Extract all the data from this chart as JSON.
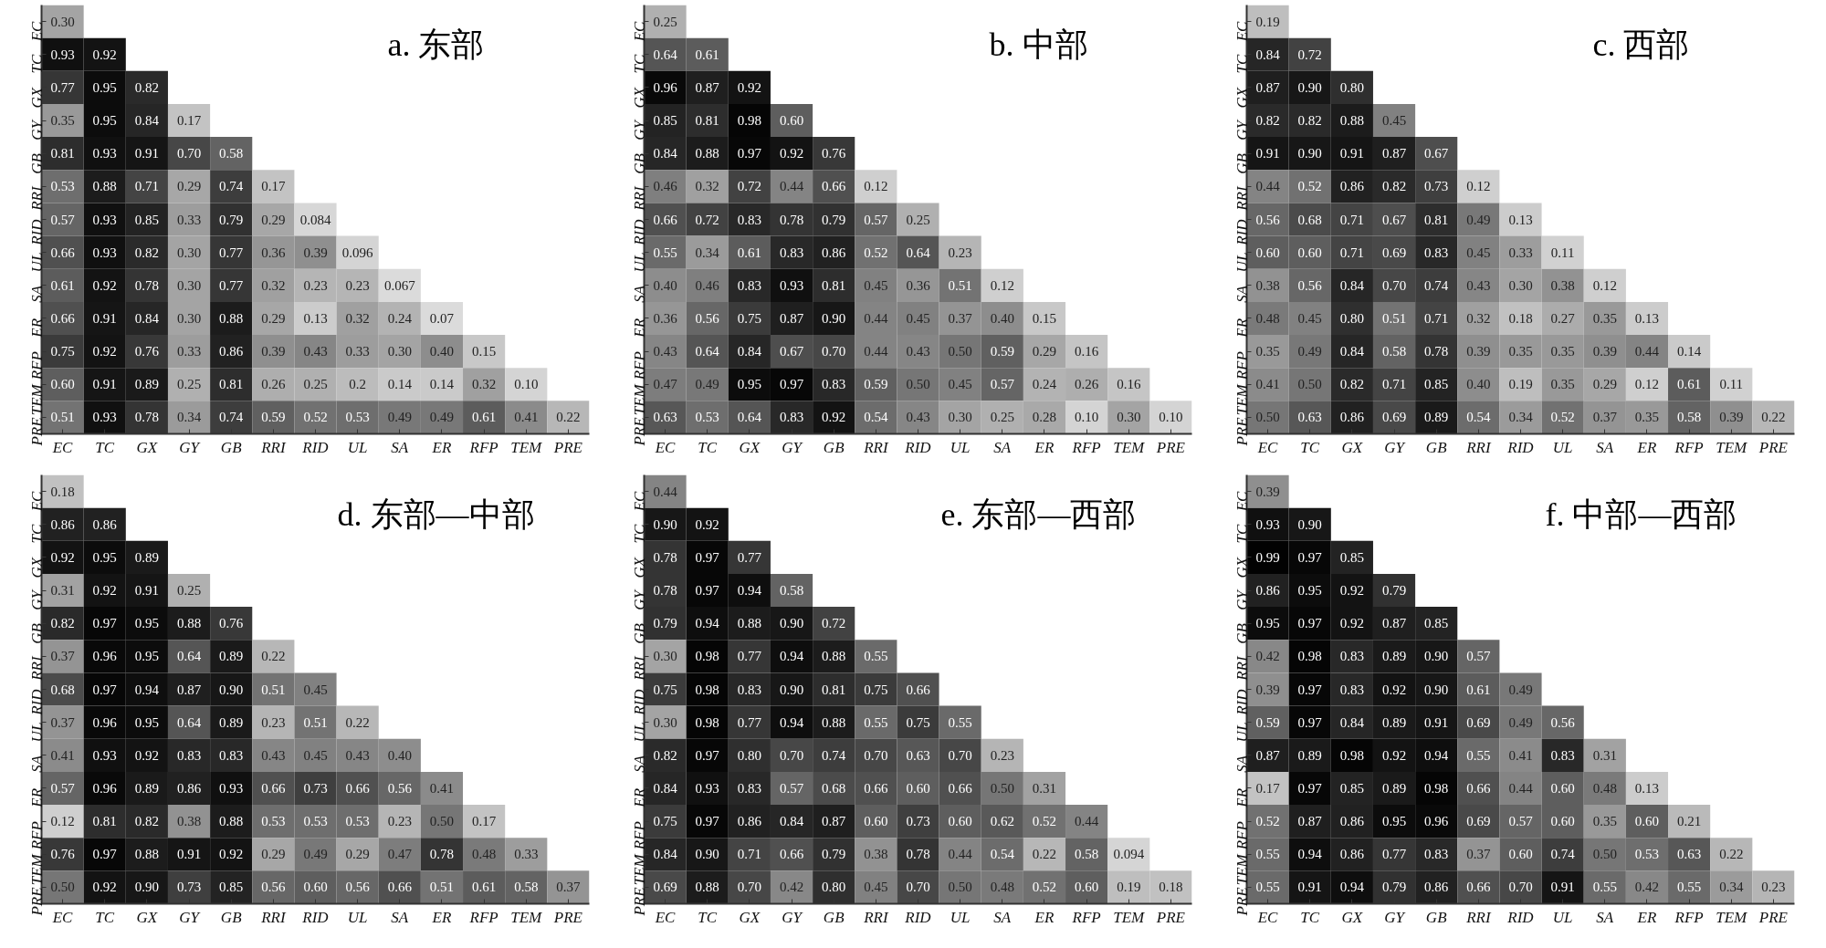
{
  "chart_data": [
    {
      "type": "heatmap",
      "title": "a. 东部",
      "categories": [
        "EC",
        "TC",
        "GX",
        "GY",
        "GB",
        "RRI",
        "RID",
        "UL",
        "SA",
        "ER",
        "RFP",
        "TEM",
        "PRE"
      ],
      "y_categories": [
        "EC",
        "TC",
        "GX",
        "GY",
        "GB",
        "RRI",
        "RID",
        "UL",
        "SA",
        "ER",
        "RFP",
        "TEM",
        "PRE"
      ],
      "cells": [
        [
          0.3,
          null,
          null,
          null,
          null,
          null,
          null,
          null,
          null,
          null,
          null,
          null,
          null
        ],
        [
          0.93,
          0.92,
          null,
          null,
          null,
          null,
          null,
          null,
          null,
          null,
          null,
          null,
          null
        ],
        [
          0.77,
          0.95,
          0.82,
          null,
          null,
          null,
          null,
          null,
          null,
          null,
          null,
          null,
          null
        ],
        [
          0.35,
          0.95,
          0.84,
          0.17,
          null,
          null,
          null,
          null,
          null,
          null,
          null,
          null,
          null
        ],
        [
          0.81,
          0.93,
          0.91,
          0.7,
          0.58,
          null,
          null,
          null,
          null,
          null,
          null,
          null,
          null
        ],
        [
          0.53,
          0.88,
          0.71,
          0.29,
          0.74,
          0.17,
          null,
          null,
          null,
          null,
          null,
          null,
          null
        ],
        [
          0.57,
          0.93,
          0.85,
          0.33,
          0.79,
          0.29,
          0.084,
          null,
          null,
          null,
          null,
          null,
          null
        ],
        [
          0.66,
          0.93,
          0.82,
          0.3,
          0.77,
          0.36,
          0.39,
          0.096,
          null,
          null,
          null,
          null,
          null
        ],
        [
          0.61,
          0.92,
          0.78,
          0.3,
          0.77,
          0.32,
          0.23,
          0.23,
          0.067,
          null,
          null,
          null,
          null
        ],
        [
          0.66,
          0.91,
          0.84,
          0.3,
          0.88,
          0.29,
          0.13,
          0.32,
          0.24,
          0.07,
          null,
          null,
          null
        ],
        [
          0.75,
          0.92,
          0.76,
          0.33,
          0.86,
          0.39,
          0.43,
          0.33,
          0.3,
          0.4,
          0.15,
          null,
          null
        ],
        [
          0.6,
          0.91,
          0.89,
          0.25,
          0.81,
          0.26,
          0.25,
          0.2,
          0.14,
          0.14,
          0.32,
          0.1,
          null
        ],
        [
          0.51,
          0.93,
          0.78,
          0.34,
          0.74,
          0.59,
          0.52,
          0.53,
          0.49,
          0.49,
          0.61,
          0.41,
          0.22
        ]
      ],
      "cell_labels": [
        [
          "0.30",
          null,
          null,
          null,
          null,
          null,
          null,
          null,
          null,
          null,
          null,
          null,
          null
        ],
        [
          "0.93",
          "0.92",
          null,
          null,
          null,
          null,
          null,
          null,
          null,
          null,
          null,
          null,
          null
        ],
        [
          "0.77",
          "0.95",
          "0.82",
          null,
          null,
          null,
          null,
          null,
          null,
          null,
          null,
          null,
          null
        ],
        [
          "0.35",
          "0.95",
          "0.84",
          "0.17",
          null,
          null,
          null,
          null,
          null,
          null,
          null,
          null,
          null
        ],
        [
          "0.81",
          "0.93",
          "0.91",
          "0.70",
          "0.58",
          null,
          null,
          null,
          null,
          null,
          null,
          null,
          null
        ],
        [
          "0.53",
          "0.88",
          "0.71",
          "0.29",
          "0.74",
          "0.17",
          null,
          null,
          null,
          null,
          null,
          null,
          null
        ],
        [
          "0.57",
          "0.93",
          "0.85",
          "0.33",
          "0.79",
          "0.29",
          "0.084",
          null,
          null,
          null,
          null,
          null,
          null
        ],
        [
          "0.66",
          "0.93",
          "0.82",
          "0.30",
          "0.77",
          "0.36",
          "0.39",
          "0.096",
          null,
          null,
          null,
          null,
          null
        ],
        [
          "0.61",
          "0.92",
          "0.78",
          "0.30",
          "0.77",
          "0.32",
          "0.23",
          "0.23",
          "0.067",
          null,
          null,
          null,
          null
        ],
        [
          "0.66",
          "0.91",
          "0.84",
          "0.30",
          "0.88",
          "0.29",
          "0.13",
          "0.32",
          "0.24",
          "0.07",
          null,
          null,
          null
        ],
        [
          "0.75",
          "0.92",
          "0.76",
          "0.33",
          "0.86",
          "0.39",
          "0.43",
          "0.33",
          "0.30",
          "0.40",
          "0.15",
          null,
          null
        ],
        [
          "0.60",
          "0.91",
          "0.89",
          "0.25",
          "0.81",
          "0.26",
          "0.25",
          "0.2",
          "0.14",
          "0.14",
          "0.32",
          "0.10",
          null
        ],
        [
          "0.51",
          "0.93",
          "0.78",
          "0.34",
          "0.74",
          "0.59",
          "0.52",
          "0.53",
          "0.49",
          "0.49",
          "0.61",
          "0.41",
          "0.22"
        ]
      ]
    },
    {
      "type": "heatmap",
      "title": "b. 中部",
      "categories": [
        "EC",
        "TC",
        "GX",
        "GY",
        "GB",
        "RRI",
        "RID",
        "UL",
        "SA",
        "ER",
        "RFP",
        "TEM",
        "PRE"
      ],
      "y_categories": [
        "EC",
        "TC",
        "GX",
        "GY",
        "GB",
        "RRI",
        "RID",
        "UL",
        "SA",
        "ER",
        "RFP",
        "TEM",
        "PRE"
      ],
      "cells": [
        [
          0.25,
          null,
          null,
          null,
          null,
          null,
          null,
          null,
          null,
          null,
          null,
          null,
          null
        ],
        [
          0.64,
          0.61,
          null,
          null,
          null,
          null,
          null,
          null,
          null,
          null,
          null,
          null,
          null
        ],
        [
          0.96,
          0.87,
          0.92,
          null,
          null,
          null,
          null,
          null,
          null,
          null,
          null,
          null,
          null
        ],
        [
          0.85,
          0.81,
          0.98,
          0.6,
          null,
          null,
          null,
          null,
          null,
          null,
          null,
          null,
          null
        ],
        [
          0.84,
          0.88,
          0.97,
          0.92,
          0.76,
          null,
          null,
          null,
          null,
          null,
          null,
          null,
          null
        ],
        [
          0.46,
          0.32,
          0.72,
          0.44,
          0.66,
          0.12,
          null,
          null,
          null,
          null,
          null,
          null,
          null
        ],
        [
          0.66,
          0.72,
          0.83,
          0.78,
          0.79,
          0.57,
          0.25,
          null,
          null,
          null,
          null,
          null,
          null
        ],
        [
          0.55,
          0.34,
          0.61,
          0.83,
          0.86,
          0.52,
          0.64,
          0.23,
          null,
          null,
          null,
          null,
          null
        ],
        [
          0.4,
          0.46,
          0.83,
          0.93,
          0.81,
          0.45,
          0.36,
          0.51,
          0.12,
          null,
          null,
          null,
          null
        ],
        [
          0.36,
          0.56,
          0.75,
          0.87,
          0.9,
          0.44,
          0.45,
          0.37,
          0.4,
          0.15,
          null,
          null,
          null
        ],
        [
          0.43,
          0.64,
          0.84,
          0.67,
          0.7,
          0.44,
          0.43,
          0.5,
          0.59,
          0.29,
          0.16,
          null,
          null
        ],
        [
          0.47,
          0.49,
          0.95,
          0.97,
          0.83,
          0.59,
          0.5,
          0.45,
          0.57,
          0.24,
          0.26,
          0.16,
          null
        ],
        [
          0.63,
          0.53,
          0.64,
          0.83,
          0.92,
          0.54,
          0.43,
          0.3,
          0.25,
          0.28,
          0.1,
          0.3,
          0.1
        ]
      ],
      "cell_labels": [
        [
          "0.25",
          null,
          null,
          null,
          null,
          null,
          null,
          null,
          null,
          null,
          null,
          null,
          null
        ],
        [
          "0.64",
          "0.61",
          null,
          null,
          null,
          null,
          null,
          null,
          null,
          null,
          null,
          null,
          null
        ],
        [
          "0.96",
          "0.87",
          "0.92",
          null,
          null,
          null,
          null,
          null,
          null,
          null,
          null,
          null,
          null
        ],
        [
          "0.85",
          "0.81",
          "0.98",
          "0.60",
          null,
          null,
          null,
          null,
          null,
          null,
          null,
          null,
          null
        ],
        [
          "0.84",
          "0.88",
          "0.97",
          "0.92",
          "0.76",
          null,
          null,
          null,
          null,
          null,
          null,
          null,
          null
        ],
        [
          "0.46",
          "0.32",
          "0.72",
          "0.44",
          "0.66",
          "0.12",
          null,
          null,
          null,
          null,
          null,
          null,
          null
        ],
        [
          "0.66",
          "0.72",
          "0.83",
          "0.78",
          "0.79",
          "0.57",
          "0.25",
          null,
          null,
          null,
          null,
          null,
          null
        ],
        [
          "0.55",
          "0.34",
          "0.61",
          "0.83",
          "0.86",
          "0.52",
          "0.64",
          "0.23",
          null,
          null,
          null,
          null,
          null
        ],
        [
          "0.40",
          "0.46",
          "0.83",
          "0.93",
          "0.81",
          "0.45",
          "0.36",
          "0.51",
          "0.12",
          null,
          null,
          null,
          null
        ],
        [
          "0.36",
          "0.56",
          "0.75",
          "0.87",
          "0.90",
          "0.44",
          "0.45",
          "0.37",
          "0.40",
          "0.15",
          null,
          null,
          null
        ],
        [
          "0.43",
          "0.64",
          "0.84",
          "0.67",
          "0.70",
          "0.44",
          "0.43",
          "0.50",
          "0.59",
          "0.29",
          "0.16",
          null,
          null
        ],
        [
          "0.47",
          "0.49",
          "0.95",
          "0.97",
          "0.83",
          "0.59",
          "0.50",
          "0.45",
          "0.57",
          "0.24",
          "0.26",
          "0.16",
          null
        ],
        [
          "0.63",
          "0.53",
          "0.64",
          "0.83",
          "0.92",
          "0.54",
          "0.43",
          "0.30",
          "0.25",
          "0.28",
          "0.10",
          "0.30",
          "0.10"
        ]
      ]
    },
    {
      "type": "heatmap",
      "title": "c. 西部",
      "categories": [
        "EC",
        "TC",
        "GX",
        "GY",
        "GB",
        "RRI",
        "RID",
        "UL",
        "SA",
        "ER",
        "RFP",
        "TEM",
        "PRE"
      ],
      "y_categories": [
        "EC",
        "TC",
        "GX",
        "GY",
        "GB",
        "RRI",
        "RID",
        "UL",
        "SA",
        "ER",
        "RFP",
        "TEM",
        "PRE"
      ],
      "cells": [
        [
          0.19,
          null,
          null,
          null,
          null,
          null,
          null,
          null,
          null,
          null,
          null,
          null,
          null
        ],
        [
          0.84,
          0.72,
          null,
          null,
          null,
          null,
          null,
          null,
          null,
          null,
          null,
          null,
          null
        ],
        [
          0.87,
          0.9,
          0.8,
          null,
          null,
          null,
          null,
          null,
          null,
          null,
          null,
          null,
          null
        ],
        [
          0.82,
          0.82,
          0.88,
          0.45,
          null,
          null,
          null,
          null,
          null,
          null,
          null,
          null,
          null
        ],
        [
          0.91,
          0.9,
          0.91,
          0.87,
          0.67,
          null,
          null,
          null,
          null,
          null,
          null,
          null,
          null
        ],
        [
          0.44,
          0.52,
          0.86,
          0.82,
          0.73,
          0.12,
          null,
          null,
          null,
          null,
          null,
          null,
          null
        ],
        [
          0.56,
          0.68,
          0.71,
          0.67,
          0.81,
          0.49,
          0.13,
          null,
          null,
          null,
          null,
          null,
          null
        ],
        [
          0.6,
          0.6,
          0.71,
          0.69,
          0.83,
          0.45,
          0.33,
          0.11,
          null,
          null,
          null,
          null,
          null
        ],
        [
          0.38,
          0.56,
          0.84,
          0.7,
          0.74,
          0.43,
          0.3,
          0.38,
          0.12,
          null,
          null,
          null,
          null
        ],
        [
          0.48,
          0.45,
          0.8,
          0.51,
          0.71,
          0.32,
          0.18,
          0.27,
          0.35,
          0.13,
          null,
          null,
          null
        ],
        [
          0.35,
          0.49,
          0.84,
          0.58,
          0.78,
          0.39,
          0.35,
          0.35,
          0.39,
          0.44,
          0.14,
          null,
          null
        ],
        [
          0.41,
          0.5,
          0.82,
          0.71,
          0.85,
          0.4,
          0.19,
          0.35,
          0.29,
          0.12,
          0.61,
          0.11,
          null
        ],
        [
          0.5,
          0.63,
          0.86,
          0.69,
          0.89,
          0.54,
          0.34,
          0.52,
          0.37,
          0.35,
          0.58,
          0.39,
          0.22
        ]
      ],
      "cell_labels": [
        [
          "0.19",
          null,
          null,
          null,
          null,
          null,
          null,
          null,
          null,
          null,
          null,
          null,
          null
        ],
        [
          "0.84",
          "0.72",
          null,
          null,
          null,
          null,
          null,
          null,
          null,
          null,
          null,
          null,
          null
        ],
        [
          "0.87",
          "0.90",
          "0.80",
          null,
          null,
          null,
          null,
          null,
          null,
          null,
          null,
          null,
          null
        ],
        [
          "0.82",
          "0.82",
          "0.88",
          "0.45",
          null,
          null,
          null,
          null,
          null,
          null,
          null,
          null,
          null
        ],
        [
          "0.91",
          "0.90",
          "0.91",
          "0.87",
          "0.67",
          null,
          null,
          null,
          null,
          null,
          null,
          null,
          null
        ],
        [
          "0.44",
          "0.52",
          "0.86",
          "0.82",
          "0.73",
          "0.12",
          null,
          null,
          null,
          null,
          null,
          null,
          null
        ],
        [
          "0.56",
          "0.68",
          "0.71",
          "0.67",
          "0.81",
          "0.49",
          "0.13",
          null,
          null,
          null,
          null,
          null,
          null
        ],
        [
          "0.60",
          "0.60",
          "0.71",
          "0.69",
          "0.83",
          "0.45",
          "0.33",
          "0.11",
          null,
          null,
          null,
          null,
          null
        ],
        [
          "0.38",
          "0.56",
          "0.84",
          "0.70",
          "0.74",
          "0.43",
          "0.30",
          "0.38",
          "0.12",
          null,
          null,
          null,
          null
        ],
        [
          "0.48",
          "0.45",
          "0.80",
          "0.51",
          "0.71",
          "0.32",
          "0.18",
          "0.27",
          "0.35",
          "0.13",
          null,
          null,
          null
        ],
        [
          "0.35",
          "0.49",
          "0.84",
          "0.58",
          "0.78",
          "0.39",
          "0.35",
          "0.35",
          "0.39",
          "0.44",
          "0.14",
          null,
          null
        ],
        [
          "0.41",
          "0.50",
          "0.82",
          "0.71",
          "0.85",
          "0.40",
          "0.19",
          "0.35",
          "0.29",
          "0.12",
          "0.61",
          "0.11",
          null
        ],
        [
          "0.50",
          "0.63",
          "0.86",
          "0.69",
          "0.89",
          "0.54",
          "0.34",
          "0.52",
          "0.37",
          "0.35",
          "0.58",
          "0.39",
          "0.22"
        ]
      ]
    },
    {
      "type": "heatmap",
      "title": "d. 东部—中部",
      "categories": [
        "EC",
        "TC",
        "GX",
        "GY",
        "GB",
        "RRI",
        "RID",
        "UL",
        "SA",
        "ER",
        "RFP",
        "TEM",
        "PRE"
      ],
      "y_categories": [
        "EC",
        "TC",
        "GX",
        "GY",
        "GB",
        "RRI",
        "RID",
        "UL",
        "SA",
        "ER",
        "RFP",
        "TEM",
        "PRE"
      ],
      "cells": [
        [
          0.18,
          null,
          null,
          null,
          null,
          null,
          null,
          null,
          null,
          null,
          null,
          null,
          null
        ],
        [
          0.86,
          0.86,
          null,
          null,
          null,
          null,
          null,
          null,
          null,
          null,
          null,
          null,
          null
        ],
        [
          0.92,
          0.95,
          0.89,
          null,
          null,
          null,
          null,
          null,
          null,
          null,
          null,
          null,
          null
        ],
        [
          0.31,
          0.92,
          0.91,
          0.25,
          null,
          null,
          null,
          null,
          null,
          null,
          null,
          null,
          null
        ],
        [
          0.82,
          0.97,
          0.95,
          0.88,
          0.76,
          null,
          null,
          null,
          null,
          null,
          null,
          null,
          null
        ],
        [
          0.37,
          0.96,
          0.95,
          0.64,
          0.89,
          0.22,
          null,
          null,
          null,
          null,
          null,
          null,
          null
        ],
        [
          0.68,
          0.97,
          0.94,
          0.87,
          0.9,
          0.51,
          0.45,
          null,
          null,
          null,
          null,
          null,
          null
        ],
        [
          0.37,
          0.96,
          0.95,
          0.64,
          0.89,
          0.23,
          0.51,
          0.22,
          null,
          null,
          null,
          null,
          null
        ],
        [
          0.41,
          0.93,
          0.92,
          0.83,
          0.83,
          0.43,
          0.45,
          0.43,
          0.4,
          null,
          null,
          null,
          null
        ],
        [
          0.57,
          0.96,
          0.89,
          0.86,
          0.93,
          0.66,
          0.73,
          0.66,
          0.56,
          0.41,
          null,
          null,
          null
        ],
        [
          0.12,
          0.81,
          0.82,
          0.38,
          0.88,
          0.53,
          0.53,
          0.53,
          0.23,
          0.5,
          0.17,
          null,
          null
        ],
        [
          0.76,
          0.97,
          0.88,
          0.91,
          0.92,
          0.29,
          0.49,
          0.29,
          0.47,
          0.78,
          0.48,
          0.33,
          null
        ],
        [
          0.5,
          0.92,
          0.9,
          0.73,
          0.85,
          0.56,
          0.6,
          0.56,
          0.66,
          0.51,
          0.61,
          0.58,
          0.37
        ]
      ],
      "cell_labels": [
        [
          "0.18",
          null,
          null,
          null,
          null,
          null,
          null,
          null,
          null,
          null,
          null,
          null,
          null
        ],
        [
          "0.86",
          "0.86",
          null,
          null,
          null,
          null,
          null,
          null,
          null,
          null,
          null,
          null,
          null
        ],
        [
          "0.92",
          "0.95",
          "0.89",
          null,
          null,
          null,
          null,
          null,
          null,
          null,
          null,
          null,
          null
        ],
        [
          "0.31",
          "0.92",
          "0.91",
          "0.25",
          null,
          null,
          null,
          null,
          null,
          null,
          null,
          null,
          null
        ],
        [
          "0.82",
          "0.97",
          "0.95",
          "0.88",
          "0.76",
          null,
          null,
          null,
          null,
          null,
          null,
          null,
          null
        ],
        [
          "0.37",
          "0.96",
          "0.95",
          "0.64",
          "0.89",
          "0.22",
          null,
          null,
          null,
          null,
          null,
          null,
          null
        ],
        [
          "0.68",
          "0.97",
          "0.94",
          "0.87",
          "0.90",
          "0.51",
          "0.45",
          null,
          null,
          null,
          null,
          null,
          null
        ],
        [
          "0.37",
          "0.96",
          "0.95",
          "0.64",
          "0.89",
          "0.23",
          "0.51",
          "0.22",
          null,
          null,
          null,
          null,
          null
        ],
        [
          "0.41",
          "0.93",
          "0.92",
          "0.83",
          "0.83",
          "0.43",
          "0.45",
          "0.43",
          "0.40",
          null,
          null,
          null,
          null
        ],
        [
          "0.57",
          "0.96",
          "0.89",
          "0.86",
          "0.93",
          "0.66",
          "0.73",
          "0.66",
          "0.56",
          "0.41",
          null,
          null,
          null
        ],
        [
          "0.12",
          "0.81",
          "0.82",
          "0.38",
          "0.88",
          "0.53",
          "0.53",
          "0.53",
          "0.23",
          "0.50",
          "0.17",
          null,
          null
        ],
        [
          "0.76",
          "0.97",
          "0.88",
          "0.91",
          "0.92",
          "0.29",
          "0.49",
          "0.29",
          "0.47",
          "0.78",
          "0.48",
          "0.33",
          null
        ],
        [
          "0.50",
          "0.92",
          "0.90",
          "0.73",
          "0.85",
          "0.56",
          "0.60",
          "0.56",
          "0.66",
          "0.51",
          "0.61",
          "0.58",
          "0.37"
        ]
      ]
    },
    {
      "type": "heatmap",
      "title": "e. 东部—西部",
      "categories": [
        "EC",
        "TC",
        "GX",
        "GY",
        "GB",
        "RRI",
        "RID",
        "UL",
        "SA",
        "ER",
        "RFP",
        "TEM",
        "PRE"
      ],
      "y_categories": [
        "EC",
        "TC",
        "GX",
        "GY",
        "GB",
        "RRI",
        "RID",
        "UL",
        "SA",
        "ER",
        "RFP",
        "TEM",
        "PRE"
      ],
      "cells": [
        [
          0.44,
          null,
          null,
          null,
          null,
          null,
          null,
          null,
          null,
          null,
          null,
          null,
          null
        ],
        [
          0.9,
          0.92,
          null,
          null,
          null,
          null,
          null,
          null,
          null,
          null,
          null,
          null,
          null
        ],
        [
          0.78,
          0.97,
          0.77,
          null,
          null,
          null,
          null,
          null,
          null,
          null,
          null,
          null,
          null
        ],
        [
          0.78,
          0.97,
          0.94,
          0.58,
          null,
          null,
          null,
          null,
          null,
          null,
          null,
          null,
          null
        ],
        [
          0.79,
          0.94,
          0.88,
          0.9,
          0.72,
          null,
          null,
          null,
          null,
          null,
          null,
          null,
          null
        ],
        [
          0.3,
          0.98,
          0.77,
          0.94,
          0.88,
          0.55,
          null,
          null,
          null,
          null,
          null,
          null,
          null
        ],
        [
          0.75,
          0.98,
          0.83,
          0.9,
          0.81,
          0.75,
          0.66,
          null,
          null,
          null,
          null,
          null,
          null
        ],
        [
          0.3,
          0.98,
          0.77,
          0.94,
          0.88,
          0.55,
          0.75,
          0.55,
          null,
          null,
          null,
          null,
          null
        ],
        [
          0.82,
          0.97,
          0.8,
          0.7,
          0.74,
          0.7,
          0.63,
          0.7,
          0.23,
          null,
          null,
          null,
          null
        ],
        [
          0.84,
          0.93,
          0.83,
          0.57,
          0.68,
          0.66,
          0.6,
          0.66,
          0.5,
          0.31,
          null,
          null,
          null
        ],
        [
          0.75,
          0.97,
          0.86,
          0.84,
          0.87,
          0.6,
          0.73,
          0.6,
          0.62,
          0.52,
          0.44,
          null,
          null
        ],
        [
          0.84,
          0.9,
          0.71,
          0.66,
          0.79,
          0.38,
          0.78,
          0.44,
          0.54,
          0.22,
          0.58,
          0.094,
          null
        ],
        [
          0.69,
          0.88,
          0.7,
          0.42,
          0.8,
          0.45,
          0.7,
          0.5,
          0.48,
          0.52,
          0.6,
          0.19,
          0.18
        ]
      ],
      "cell_labels": [
        [
          "0.44",
          null,
          null,
          null,
          null,
          null,
          null,
          null,
          null,
          null,
          null,
          null,
          null
        ],
        [
          "0.90",
          "0.92",
          null,
          null,
          null,
          null,
          null,
          null,
          null,
          null,
          null,
          null,
          null
        ],
        [
          "0.78",
          "0.97",
          "0.77",
          null,
          null,
          null,
          null,
          null,
          null,
          null,
          null,
          null,
          null
        ],
        [
          "0.78",
          "0.97",
          "0.94",
          "0.58",
          null,
          null,
          null,
          null,
          null,
          null,
          null,
          null,
          null
        ],
        [
          "0.79",
          "0.94",
          "0.88",
          "0.90",
          "0.72",
          null,
          null,
          null,
          null,
          null,
          null,
          null,
          null
        ],
        [
          "0.30",
          "0.98",
          "0.77",
          "0.94",
          "0.88",
          "0.55",
          null,
          null,
          null,
          null,
          null,
          null,
          null
        ],
        [
          "0.75",
          "0.98",
          "0.83",
          "0.90",
          "0.81",
          "0.75",
          "0.66",
          null,
          null,
          null,
          null,
          null,
          null
        ],
        [
          "0.30",
          "0.98",
          "0.77",
          "0.94",
          "0.88",
          "0.55",
          "0.75",
          "0.55",
          null,
          null,
          null,
          null,
          null
        ],
        [
          "0.82",
          "0.97",
          "0.80",
          "0.70",
          "0.74",
          "0.70",
          "0.63",
          "0.70",
          "0.23",
          null,
          null,
          null,
          null
        ],
        [
          "0.84",
          "0.93",
          "0.83",
          "0.57",
          "0.68",
          "0.66",
          "0.60",
          "0.66",
          "0.50",
          "0.31",
          null,
          null,
          null
        ],
        [
          "0.75",
          "0.97",
          "0.86",
          "0.84",
          "0.87",
          "0.60",
          "0.73",
          "0.60",
          "0.62",
          "0.52",
          "0.44",
          null,
          null
        ],
        [
          "0.84",
          "0.90",
          "0.71",
          "0.66",
          "0.79",
          "0.38",
          "0.78",
          "0.44",
          "0.54",
          "0.22",
          "0.58",
          "0.094",
          null
        ],
        [
          "0.69",
          "0.88",
          "0.70",
          "0.42",
          "0.80",
          "0.45",
          "0.70",
          "0.50",
          "0.48",
          "0.52",
          "0.60",
          "0.19",
          "0.18"
        ]
      ]
    },
    {
      "type": "heatmap",
      "title": "f. 中部—西部",
      "categories": [
        "EC",
        "TC",
        "GX",
        "GY",
        "GB",
        "RRI",
        "RID",
        "UL",
        "SA",
        "ER",
        "RFP",
        "TEM",
        "PRE"
      ],
      "y_categories": [
        "EC",
        "TC",
        "GX",
        "GY",
        "GB",
        "RRI",
        "RID",
        "UL",
        "SA",
        "ER",
        "RFP",
        "TEM",
        "PRE"
      ],
      "cells": [
        [
          0.39,
          null,
          null,
          null,
          null,
          null,
          null,
          null,
          null,
          null,
          null,
          null,
          null
        ],
        [
          0.93,
          0.9,
          null,
          null,
          null,
          null,
          null,
          null,
          null,
          null,
          null,
          null,
          null
        ],
        [
          0.99,
          0.97,
          0.85,
          null,
          null,
          null,
          null,
          null,
          null,
          null,
          null,
          null,
          null
        ],
        [
          0.86,
          0.95,
          0.92,
          0.79,
          null,
          null,
          null,
          null,
          null,
          null,
          null,
          null,
          null
        ],
        [
          0.95,
          0.97,
          0.92,
          0.87,
          0.85,
          null,
          null,
          null,
          null,
          null,
          null,
          null,
          null
        ],
        [
          0.42,
          0.98,
          0.83,
          0.89,
          0.9,
          0.57,
          null,
          null,
          null,
          null,
          null,
          null,
          null
        ],
        [
          0.39,
          0.97,
          0.83,
          0.92,
          0.9,
          0.61,
          0.49,
          null,
          null,
          null,
          null,
          null,
          null
        ],
        [
          0.59,
          0.97,
          0.84,
          0.89,
          0.91,
          0.69,
          0.49,
          0.56,
          null,
          null,
          null,
          null,
          null
        ],
        [
          0.87,
          0.89,
          0.98,
          0.92,
          0.94,
          0.55,
          0.41,
          0.83,
          0.31,
          null,
          null,
          null,
          null
        ],
        [
          0.17,
          0.97,
          0.85,
          0.89,
          0.98,
          0.66,
          0.44,
          0.6,
          0.48,
          0.13,
          null,
          null,
          null
        ],
        [
          0.52,
          0.87,
          0.86,
          0.95,
          0.96,
          0.69,
          0.57,
          0.6,
          0.35,
          0.6,
          0.21,
          null,
          null
        ],
        [
          0.55,
          0.94,
          0.86,
          0.77,
          0.83,
          0.37,
          0.6,
          0.74,
          0.5,
          0.53,
          0.63,
          0.22,
          null
        ],
        [
          0.55,
          0.91,
          0.94,
          0.79,
          0.86,
          0.66,
          0.7,
          0.91,
          0.55,
          0.42,
          0.55,
          0.34,
          0.23
        ]
      ],
      "cell_labels": [
        [
          "0.39",
          null,
          null,
          null,
          null,
          null,
          null,
          null,
          null,
          null,
          null,
          null,
          null
        ],
        [
          "0.93",
          "0.90",
          null,
          null,
          null,
          null,
          null,
          null,
          null,
          null,
          null,
          null,
          null
        ],
        [
          "0.99",
          "0.97",
          "0.85",
          null,
          null,
          null,
          null,
          null,
          null,
          null,
          null,
          null,
          null
        ],
        [
          "0.86",
          "0.95",
          "0.92",
          "0.79",
          null,
          null,
          null,
          null,
          null,
          null,
          null,
          null,
          null
        ],
        [
          "0.95",
          "0.97",
          "0.92",
          "0.87",
          "0.85",
          null,
          null,
          null,
          null,
          null,
          null,
          null,
          null
        ],
        [
          "0.42",
          "0.98",
          "0.83",
          "0.89",
          "0.90",
          "0.57",
          null,
          null,
          null,
          null,
          null,
          null,
          null
        ],
        [
          "0.39",
          "0.97",
          "0.83",
          "0.92",
          "0.90",
          "0.61",
          "0.49",
          null,
          null,
          null,
          null,
          null,
          null
        ],
        [
          "0.59",
          "0.97",
          "0.84",
          "0.89",
          "0.91",
          "0.69",
          "0.49",
          "0.56",
          null,
          null,
          null,
          null,
          null
        ],
        [
          "0.87",
          "0.89",
          "0.98",
          "0.92",
          "0.94",
          "0.55",
          "0.41",
          "0.83",
          "0.31",
          null,
          null,
          null,
          null
        ],
        [
          "0.17",
          "0.97",
          "0.85",
          "0.89",
          "0.98",
          "0.66",
          "0.44",
          "0.60",
          "0.48",
          "0.13",
          null,
          null,
          null
        ],
        [
          "0.52",
          "0.87",
          "0.86",
          "0.95",
          "0.96",
          "0.69",
          "0.57",
          "0.60",
          "0.35",
          "0.60",
          "0.21",
          null,
          null
        ],
        [
          "0.55",
          "0.94",
          "0.86",
          "0.77",
          "0.83",
          "0.37",
          "0.60",
          "0.74",
          "0.50",
          "0.53",
          "0.63",
          "0.22",
          null
        ],
        [
          "0.55",
          "0.91",
          "0.94",
          "0.79",
          "0.86",
          "0.66",
          "0.70",
          "0.91",
          "0.55",
          "0.42",
          "0.55",
          "0.34",
          "0.23"
        ]
      ]
    }
  ]
}
